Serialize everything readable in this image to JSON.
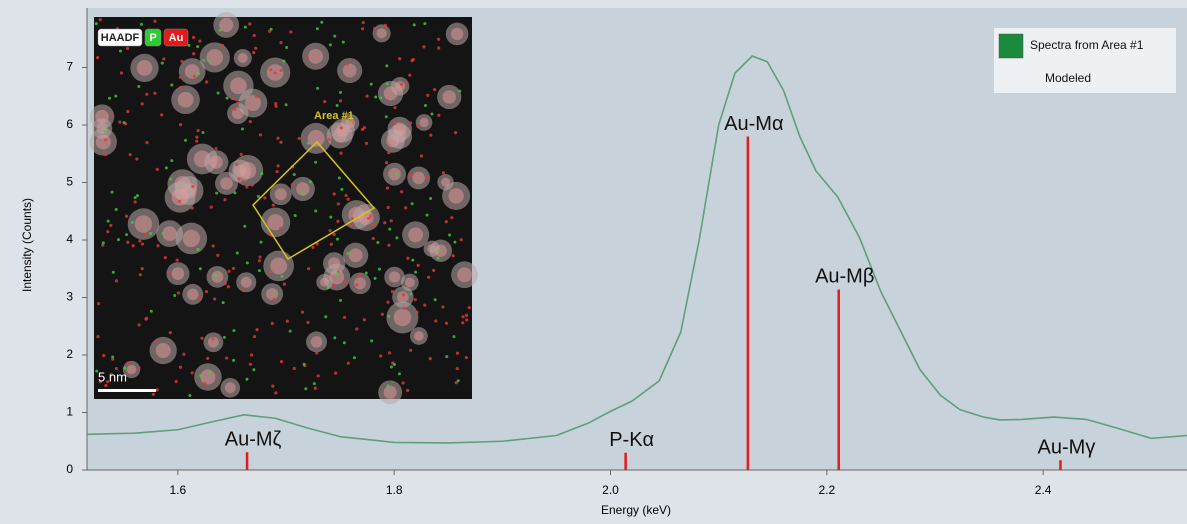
{
  "chart_data": {
    "type": "line",
    "y_label": "Intensity (Counts)",
    "x_label": "Energy (keV)",
    "xlim": [
      1.516,
      2.533
    ],
    "ylim": [
      0,
      8
    ],
    "xticks": [
      1.6,
      1.8,
      {
        "value": 2,
        "label": "2.0"
      },
      2.2,
      2.4
    ],
    "yticks": [
      0,
      1,
      2,
      3,
      4,
      5,
      6,
      7
    ],
    "series": [
      {
        "name": "Spectra from Area #1",
        "color": "#5f9e7e",
        "x": [
          1.516,
          1.56,
          1.6,
          1.63,
          1.661,
          1.69,
          1.72,
          1.75,
          1.8,
          1.85,
          1.9,
          1.95,
          1.98,
          2.0,
          2.02,
          2.045,
          2.065,
          2.082,
          2.1,
          2.115,
          2.131,
          2.145,
          2.16,
          2.175,
          2.19,
          2.21,
          2.23,
          2.25,
          2.27,
          2.286,
          2.305,
          2.323,
          2.345,
          2.36,
          2.38,
          2.41,
          2.44,
          2.47,
          2.5,
          2.533
        ],
        "values": [
          0.62,
          0.64,
          0.7,
          0.83,
          0.96,
          0.9,
          0.73,
          0.58,
          0.48,
          0.47,
          0.5,
          0.6,
          0.82,
          1.02,
          1.2,
          1.55,
          2.4,
          4.0,
          6.0,
          6.9,
          7.2,
          7.1,
          6.6,
          5.8,
          5.2,
          4.75,
          4.05,
          3.1,
          2.35,
          1.75,
          1.3,
          1.05,
          0.92,
          0.87,
          0.88,
          0.92,
          0.88,
          0.72,
          0.55,
          0.6
        ]
      },
      {
        "name": "Modeled"
      }
    ],
    "markers": [
      {
        "label": "Au-Mζ",
        "x": 1.664,
        "value": 0.31
      },
      {
        "label": "P-Kα",
        "x": 2.014,
        "value": 0.3
      },
      {
        "label": "Au-Mα",
        "x": 2.127,
        "value": 5.8
      },
      {
        "label": "Au-Mβ",
        "x": 2.211,
        "value": 3.14
      },
      {
        "label": "Au-Mγ",
        "x": 2.416,
        "value": 0.17
      }
    ],
    "inset": {
      "channels": [
        "HAADF",
        "P",
        "Au"
      ],
      "area_label": "Area #1",
      "scale_bar": "5 nm"
    }
  }
}
